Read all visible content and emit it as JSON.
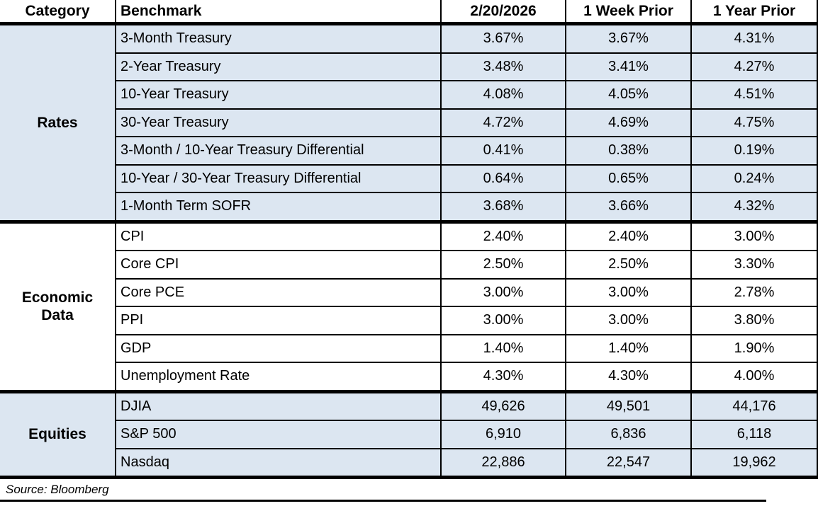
{
  "colors": {
    "section_highlight": "#DCE6F1",
    "border": "#000000",
    "background": "#FFFFFF"
  },
  "table": {
    "headers": [
      "Category",
      "Benchmark",
      "2/20/2026",
      "1 Week Prior",
      "1 Year Prior"
    ],
    "sections": [
      {
        "category": "Rates",
        "highlighted": true,
        "rows": [
          [
            "3-Month Treasury",
            "3.67%",
            "3.67%",
            "4.31%"
          ],
          [
            "2-Year Treasury",
            "3.48%",
            "3.41%",
            "4.27%"
          ],
          [
            "10-Year Treasury",
            "4.08%",
            "4.05%",
            "4.51%"
          ],
          [
            "30-Year Treasury",
            "4.72%",
            "4.69%",
            "4.75%"
          ],
          [
            "3-Month / 10-Year Treasury Differential",
            "0.41%",
            "0.38%",
            "0.19%"
          ],
          [
            "10-Year / 30-Year Treasury Differential",
            "0.64%",
            "0.65%",
            "0.24%"
          ],
          [
            "1-Month Term SOFR",
            "3.68%",
            "3.66%",
            "4.32%"
          ]
        ]
      },
      {
        "category": "Economic\nData",
        "highlighted": false,
        "rows": [
          [
            "CPI",
            "2.40%",
            "2.40%",
            "3.00%"
          ],
          [
            "Core CPI",
            "2.50%",
            "2.50%",
            "3.30%"
          ],
          [
            "Core PCE",
            "3.00%",
            "3.00%",
            "2.78%"
          ],
          [
            "PPI",
            "3.00%",
            "3.00%",
            "3.80%"
          ],
          [
            "GDP",
            "1.40%",
            "1.40%",
            "1.90%"
          ],
          [
            "Unemployment Rate",
            "4.30%",
            "4.30%",
            "4.00%"
          ]
        ]
      },
      {
        "category": "Equities",
        "highlighted": true,
        "rows": [
          [
            "DJIA",
            "49,626",
            "49,501",
            "44,176"
          ],
          [
            "S&P 500",
            "6,910",
            "6,836",
            "6,118"
          ],
          [
            "Nasdaq",
            "22,886",
            "22,547",
            "19,962"
          ]
        ]
      }
    ]
  },
  "source_note": "Source: Bloomberg"
}
